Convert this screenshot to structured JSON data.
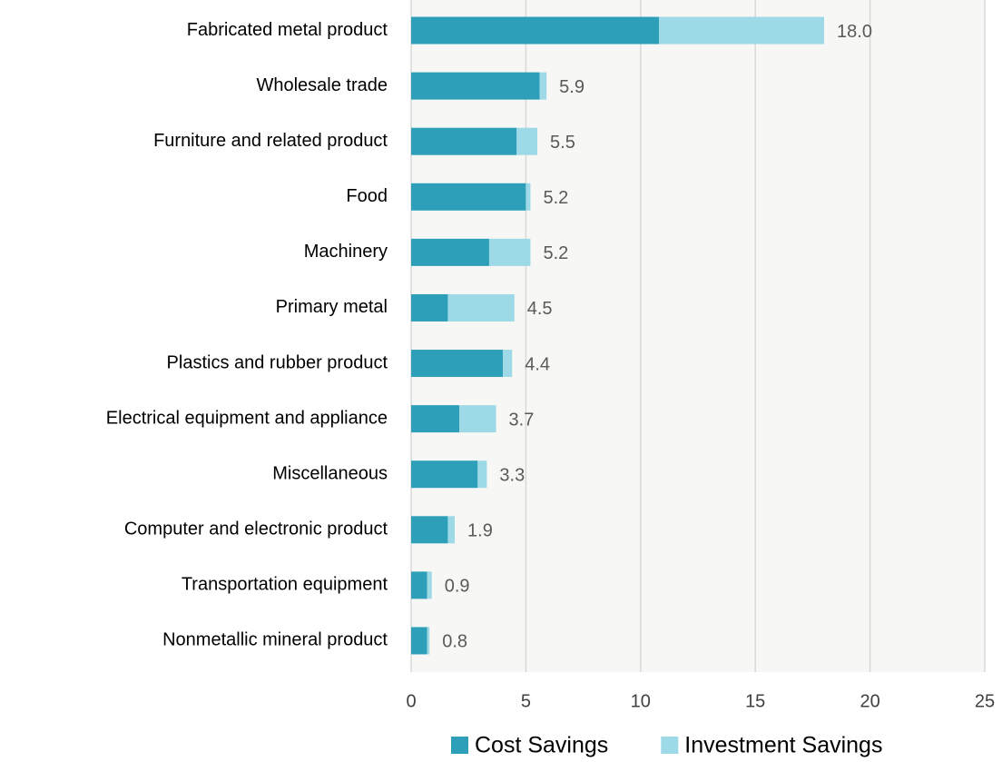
{
  "chart_data": {
    "type": "stacked_bar_horizontal",
    "categories": [
      "Fabricated metal product",
      "Wholesale trade",
      "Furniture and related product",
      "Food",
      "Machinery",
      "Primary metal",
      "Plastics and rubber product",
      "Electrical equipment and appliance",
      "Miscellaneous",
      "Computer and electronic product",
      "Transportation equipment",
      "Nonmetallic mineral product"
    ],
    "series": [
      {
        "name": "Cost Savings",
        "color": "#2e9fb9",
        "values": [
          10.8,
          5.6,
          4.6,
          5.0,
          3.4,
          1.6,
          4.0,
          2.1,
          2.9,
          1.6,
          0.7,
          0.7
        ]
      },
      {
        "name": "Investment Savings",
        "color": "#9dd9e6",
        "values": [
          7.2,
          0.3,
          0.9,
          0.2,
          1.8,
          2.9,
          0.4,
          1.6,
          0.4,
          0.3,
          0.2,
          0.1
        ]
      }
    ],
    "totals": {
      "values": [
        18.0,
        5.9,
        5.5,
        5.2,
        5.2,
        4.5,
        4.4,
        3.7,
        3.3,
        1.9,
        0.9,
        0.8
      ],
      "value_labels": [
        "18.0",
        "5.9",
        "5.5",
        "5.2",
        "5.2",
        "4.5",
        "4.4",
        "3.7",
        "3.3",
        "1.9",
        "0.9",
        "0.8"
      ]
    },
    "xlim": [
      0,
      25
    ],
    "xticks": [
      0,
      5,
      10,
      15,
      20,
      25
    ],
    "grid": true,
    "legend": "bottom"
  }
}
